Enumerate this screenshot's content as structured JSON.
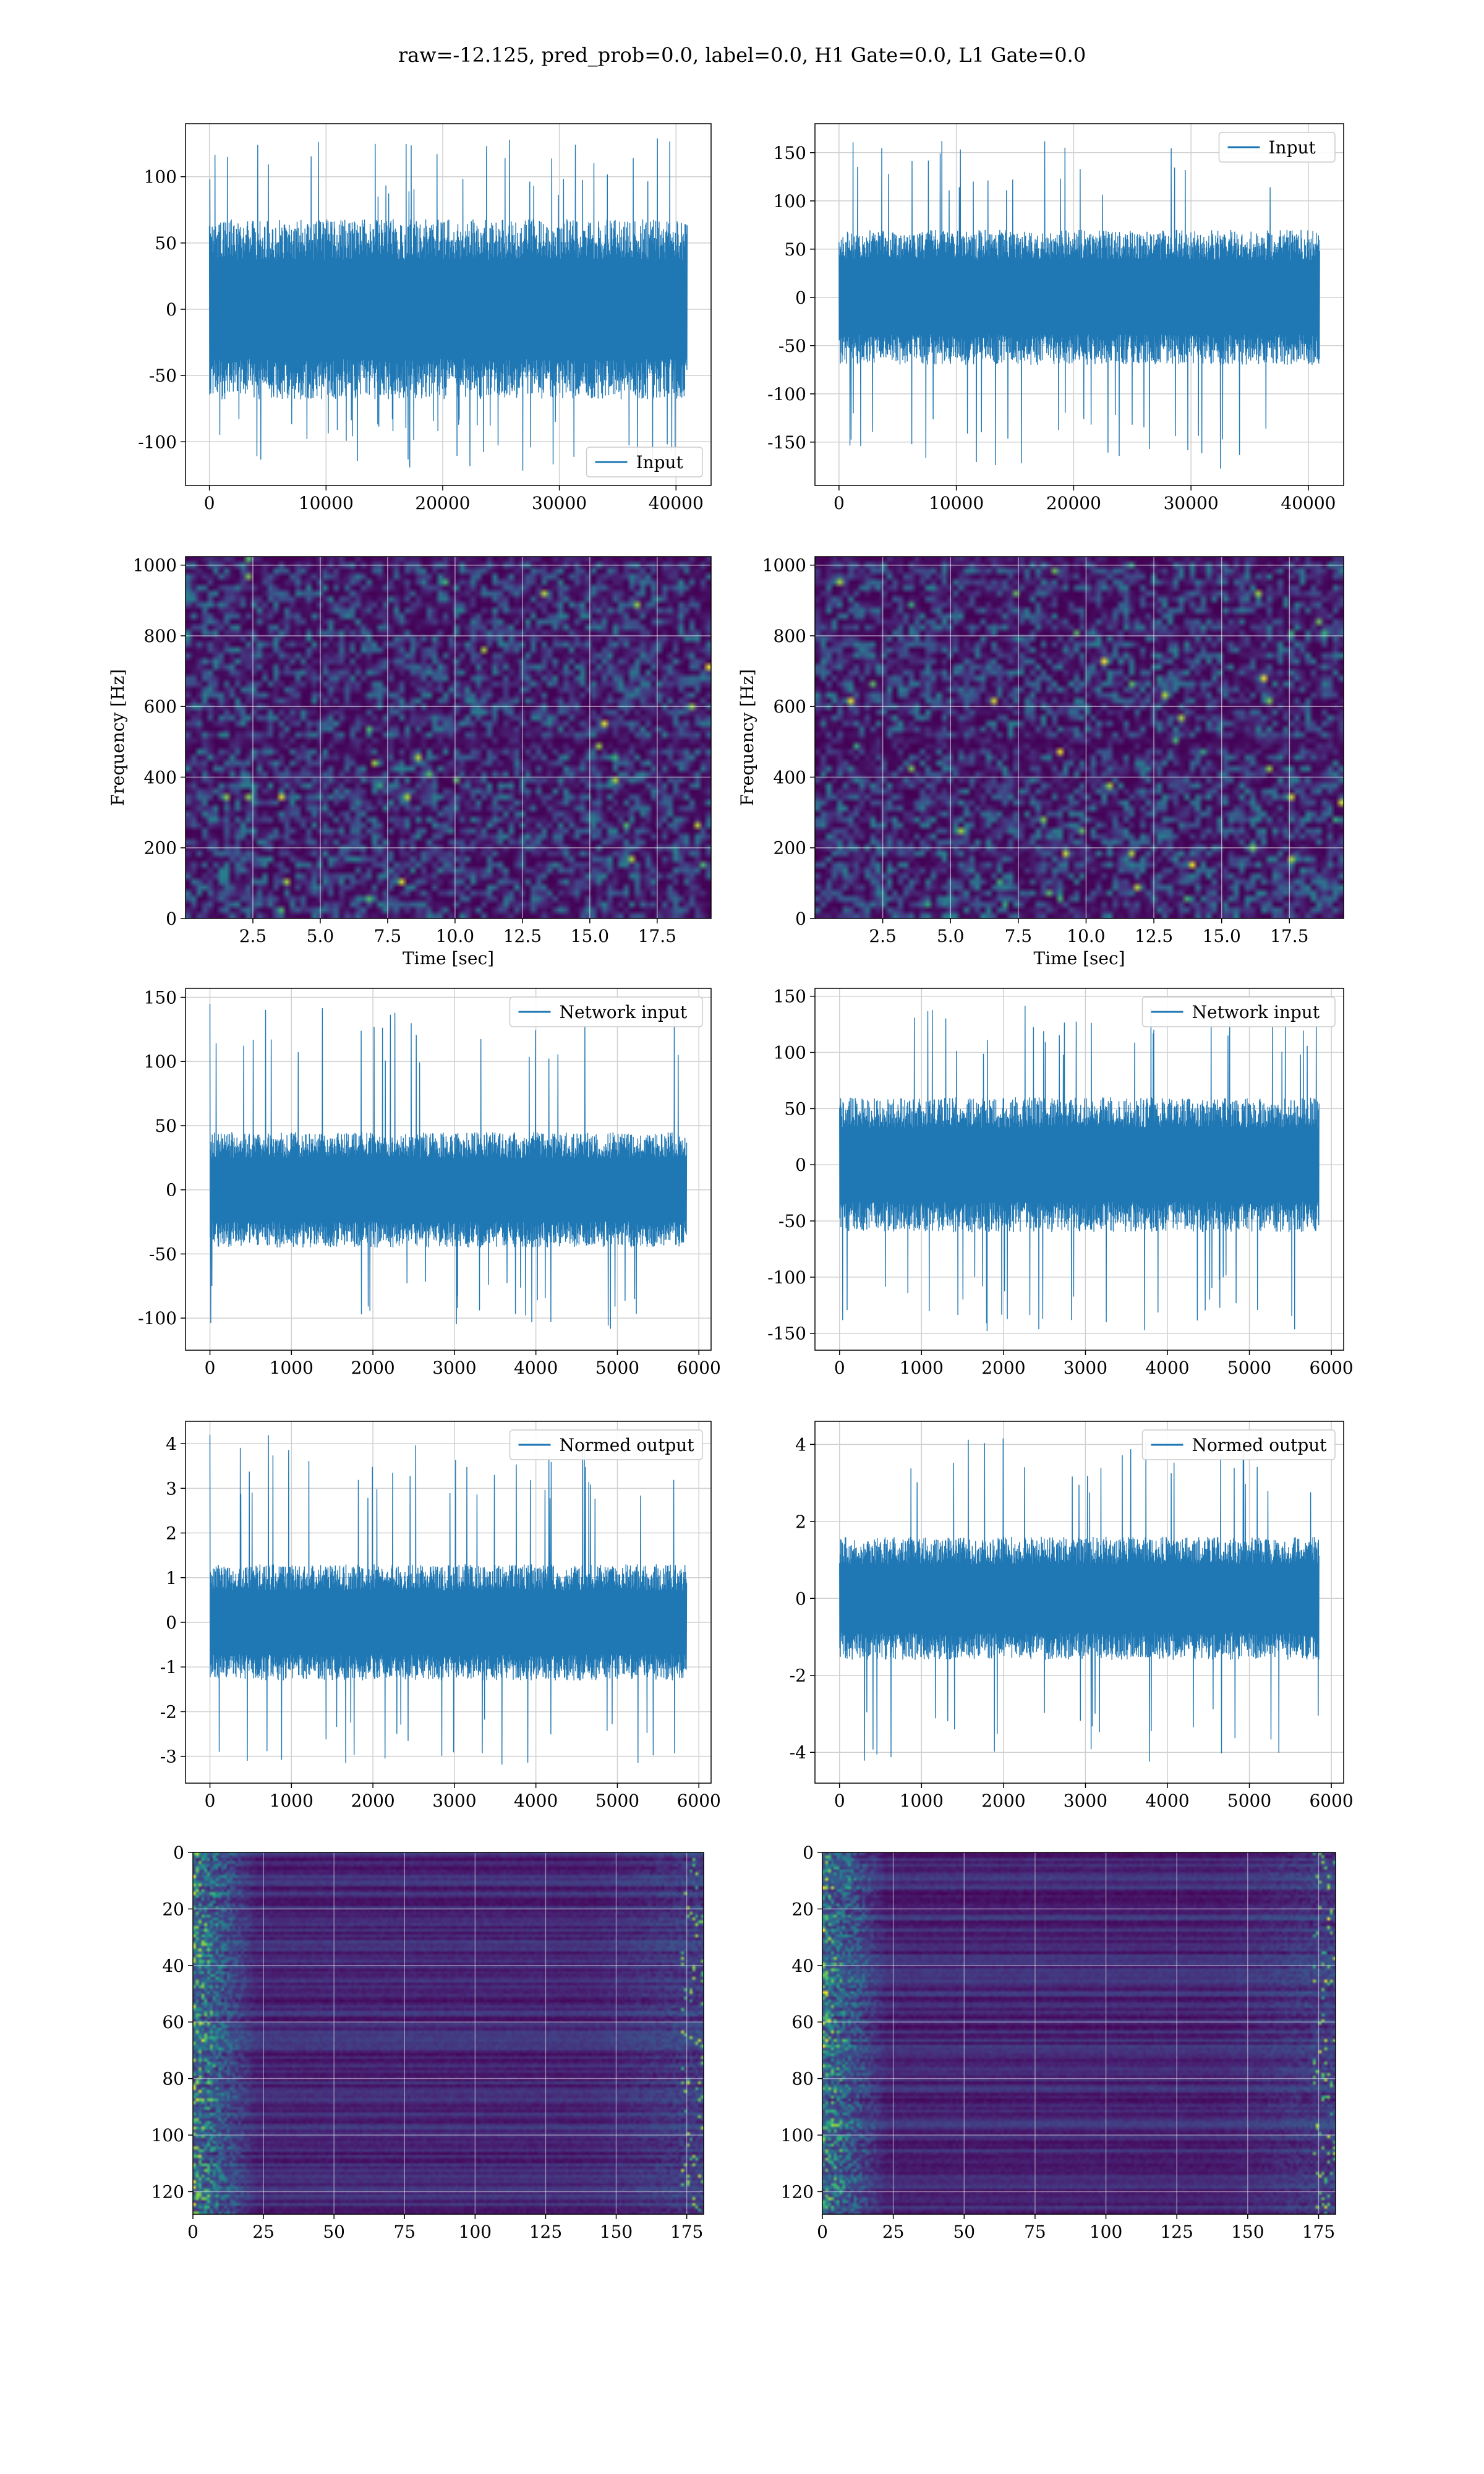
{
  "figure": {
    "suptitle": "raw=-12.125, pred_prob=0.0, label=0.0, H1 Gate=0.0, L1 Gate=0.0",
    "colors": {
      "line": "#1f77b4",
      "grid": "#d0d0d0"
    }
  },
  "chart_data": [
    {
      "id": "h1-input",
      "type": "line",
      "legend": {
        "label": "Input",
        "loc": "lower-right"
      },
      "x_range": [
        0,
        40960
      ],
      "xlim": [
        -2048,
        43008
      ],
      "ylim": [
        -133,
        140
      ],
      "xticks": [
        0,
        10000,
        20000,
        30000,
        40000
      ],
      "yticks": [
        -100,
        -50,
        0,
        50,
        100
      ],
      "envelope": {
        "core": 68,
        "peak": 130,
        "trough": -125
      },
      "grid": true
    },
    {
      "id": "l1-input",
      "type": "line",
      "legend": {
        "label": "Input",
        "loc": "upper-right"
      },
      "x_range": [
        0,
        40960
      ],
      "xlim": [
        -2048,
        43008
      ],
      "ylim": [
        -195,
        180
      ],
      "xticks": [
        0,
        10000,
        20000,
        30000,
        40000
      ],
      "yticks": [
        -150,
        -100,
        -50,
        0,
        50,
        100,
        150
      ],
      "envelope": {
        "core": 70,
        "peak": 163,
        "trough": -178
      },
      "grid": true
    },
    {
      "id": "h1-spectrogram",
      "type": "heatmap",
      "xlabel": "Time [sec]",
      "ylabel": "Frequency [Hz]",
      "xlim": [
        0,
        19.5
      ],
      "ylim": [
        0,
        1024
      ],
      "xticks": [
        2.5,
        5.0,
        7.5,
        10.0,
        12.5,
        15.0,
        17.5
      ],
      "xtick_labels": [
        "2.5",
        "5.0",
        "7.5",
        "10.0",
        "12.5",
        "15.0",
        "17.5"
      ],
      "yticks": [
        0,
        200,
        400,
        600,
        800,
        1000
      ],
      "colormap": "viridis",
      "grid": true
    },
    {
      "id": "l1-spectrogram",
      "type": "heatmap",
      "xlabel": "Time [sec]",
      "ylabel": "Frequency [Hz]",
      "xlim": [
        0,
        19.5
      ],
      "ylim": [
        0,
        1024
      ],
      "xticks": [
        2.5,
        5.0,
        7.5,
        10.0,
        12.5,
        15.0,
        17.5
      ],
      "xtick_labels": [
        "2.5",
        "5.0",
        "7.5",
        "10.0",
        "12.5",
        "15.0",
        "17.5"
      ],
      "yticks": [
        0,
        200,
        400,
        600,
        800,
        1000
      ],
      "colormap": "viridis",
      "grid": true
    },
    {
      "id": "h1-network-input",
      "type": "line",
      "legend": {
        "label": "Network input",
        "loc": "upper-right"
      },
      "x_range": [
        0,
        5850
      ],
      "xlim": [
        -300,
        6150
      ],
      "ylim": [
        -125,
        157
      ],
      "xticks": [
        0,
        1000,
        2000,
        3000,
        4000,
        5000,
        6000
      ],
      "yticks": [
        -100,
        -50,
        0,
        50,
        100,
        150
      ],
      "envelope": {
        "core": 45,
        "peak": 145,
        "trough": -110
      },
      "grid": true
    },
    {
      "id": "l1-network-input",
      "type": "line",
      "legend": {
        "label": "Network input",
        "loc": "upper-right"
      },
      "x_range": [
        0,
        5850
      ],
      "xlim": [
        -300,
        6150
      ],
      "ylim": [
        -165,
        157
      ],
      "xticks": [
        0,
        1000,
        2000,
        3000,
        4000,
        5000,
        6000
      ],
      "yticks": [
        -150,
        -100,
        -50,
        0,
        50,
        100,
        150
      ],
      "envelope": {
        "core": 60,
        "peak": 145,
        "trough": -150
      },
      "grid": true
    },
    {
      "id": "h1-normed-output",
      "type": "line",
      "legend": {
        "label": "Normed output",
        "loc": "upper-right"
      },
      "x_range": [
        0,
        5850
      ],
      "xlim": [
        -300,
        6150
      ],
      "ylim": [
        -3.6,
        4.5
      ],
      "xticks": [
        0,
        1000,
        2000,
        3000,
        4000,
        5000,
        6000
      ],
      "yticks": [
        -3,
        -2,
        -1,
        0,
        1,
        2,
        3,
        4
      ],
      "envelope": {
        "core": 1.3,
        "peak": 4.2,
        "trough": -3.2
      },
      "grid": true
    },
    {
      "id": "l1-normed-output",
      "type": "line",
      "legend": {
        "label": "Normed output",
        "loc": "upper-right"
      },
      "x_range": [
        0,
        5850
      ],
      "xlim": [
        -300,
        6150
      ],
      "ylim": [
        -4.8,
        4.6
      ],
      "xticks": [
        0,
        1000,
        2000,
        3000,
        4000,
        5000,
        6000
      ],
      "yticks": [
        -4,
        -2,
        0,
        2,
        4
      ],
      "envelope": {
        "core": 1.6,
        "peak": 4.2,
        "trough": -4.4
      },
      "grid": true
    },
    {
      "id": "h1-feature-map",
      "type": "heatmap",
      "xlim": [
        0,
        181
      ],
      "ylim": [
        128,
        0
      ],
      "xticks": [
        0,
        25,
        50,
        75,
        100,
        125,
        150,
        175
      ],
      "yticks": [
        0,
        20,
        40,
        60,
        80,
        100,
        120
      ],
      "colormap": "viridis",
      "grid": true
    },
    {
      "id": "l1-feature-map",
      "type": "heatmap",
      "xlim": [
        0,
        181
      ],
      "ylim": [
        128,
        0
      ],
      "xticks": [
        0,
        25,
        50,
        75,
        100,
        125,
        150,
        175
      ],
      "yticks": [
        0,
        20,
        40,
        60,
        80,
        100,
        120
      ],
      "colormap": "viridis",
      "grid": true
    }
  ]
}
